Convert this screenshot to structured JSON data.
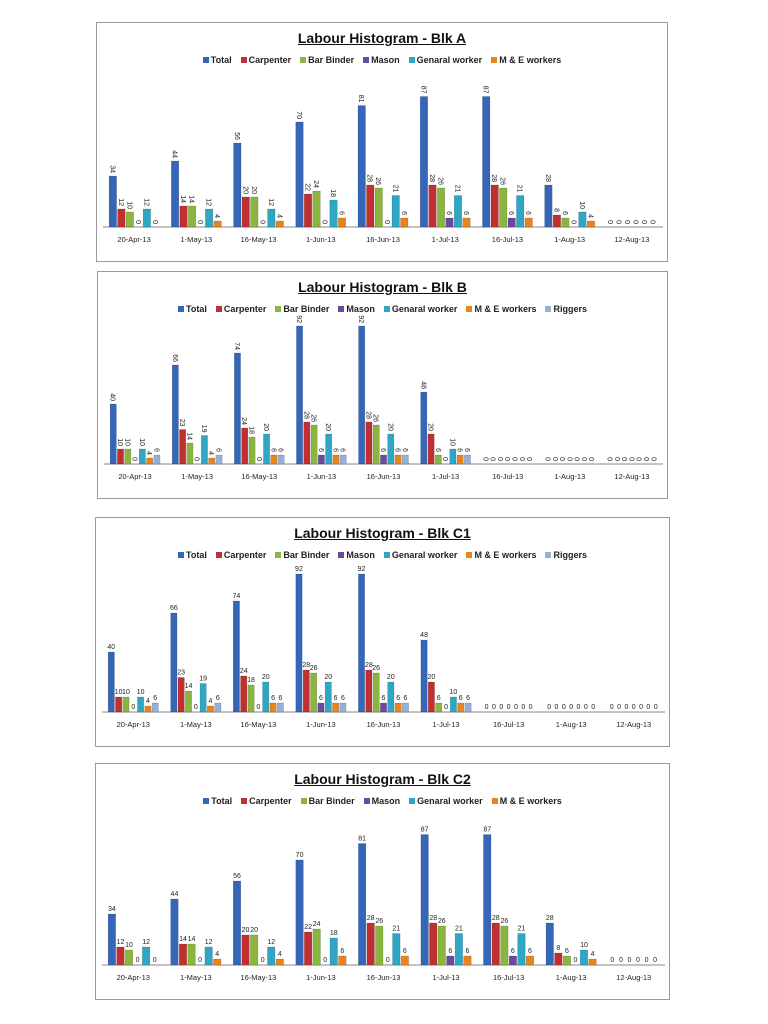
{
  "colors": {
    "Total": "#3566b8",
    "Carpenter": "#c03030",
    "Bar Binder": "#8ab53e",
    "Mason": "#6b4a9e",
    "Genaral worker": "#2fa6c4",
    "M & E workers": "#e8841f",
    "Riggers": "#94afd8"
  },
  "chart_data": [
    {
      "type": "bar",
      "title": "Labour Histogram - Blk A",
      "xlabel": "",
      "ylabel": "",
      "ylim": [
        0,
        100
      ],
      "grid": false,
      "legend": "top",
      "categories": [
        "20-Apr-13",
        "1-May-13",
        "16-May-13",
        "1-Jun-13",
        "16-Jun-13",
        "1-Jul-13",
        "16-Jul-13",
        "1-Aug-13",
        "12-Aug-13"
      ],
      "series": [
        {
          "name": "Total",
          "values": [
            34,
            44,
            56,
            70,
            81,
            87,
            87,
            28,
            0
          ]
        },
        {
          "name": "Carpenter",
          "values": [
            12,
            14,
            20,
            22,
            28,
            28,
            28,
            8,
            0
          ]
        },
        {
          "name": "Bar Binder",
          "values": [
            10,
            14,
            20,
            24,
            26,
            26,
            26,
            6,
            0
          ]
        },
        {
          "name": "Mason",
          "values": [
            0,
            0,
            0,
            0,
            0,
            6,
            6,
            0,
            0
          ]
        },
        {
          "name": "Genaral worker",
          "values": [
            12,
            12,
            12,
            18,
            21,
            21,
            21,
            10,
            0
          ]
        },
        {
          "name": "M & E workers",
          "values": [
            0,
            4,
            4,
            6,
            6,
            6,
            6,
            4,
            0
          ]
        }
      ]
    },
    {
      "type": "bar",
      "title": "Labour Histogram - Blk B",
      "xlabel": "",
      "ylabel": "",
      "ylim": [
        0,
        100
      ],
      "grid": false,
      "legend": "top",
      "categories": [
        "20-Apr-13",
        "1-May-13",
        "16-May-13",
        "1-Jun-13",
        "16-Jun-13",
        "1-Jul-13",
        "16-Jul-13",
        "1-Aug-13",
        "12-Aug-13"
      ],
      "series": [
        {
          "name": "Total",
          "values": [
            40,
            66,
            74,
            92,
            92,
            48,
            0,
            0,
            0
          ]
        },
        {
          "name": "Carpenter",
          "values": [
            10,
            23,
            24,
            28,
            28,
            20,
            0,
            0,
            0
          ]
        },
        {
          "name": "Bar Binder",
          "values": [
            10,
            14,
            18,
            26,
            26,
            6,
            0,
            0,
            0
          ]
        },
        {
          "name": "Mason",
          "values": [
            0,
            0,
            0,
            6,
            6,
            0,
            0,
            0,
            0
          ]
        },
        {
          "name": "Genaral worker",
          "values": [
            10,
            19,
            20,
            20,
            20,
            10,
            0,
            0,
            0
          ]
        },
        {
          "name": "M & E workers",
          "values": [
            4,
            4,
            6,
            6,
            6,
            6,
            0,
            0,
            0
          ]
        },
        {
          "name": "Riggers",
          "values": [
            6,
            6,
            6,
            6,
            6,
            6,
            0,
            0,
            0
          ]
        }
      ]
    },
    {
      "type": "bar",
      "title": "Labour Histogram - Blk C1",
      "xlabel": "",
      "ylabel": "",
      "ylim": [
        0,
        100
      ],
      "grid": false,
      "legend": "top",
      "categories": [
        "20-Apr-13",
        "1-May-13",
        "16-May-13",
        "1-Jun-13",
        "16-Jun-13",
        "1-Jul-13",
        "16-Jul-13",
        "1-Aug-13",
        "12-Aug-13"
      ],
      "series": [
        {
          "name": "Total",
          "values": [
            40,
            66,
            74,
            92,
            92,
            48,
            0,
            0,
            0
          ]
        },
        {
          "name": "Carpenter",
          "values": [
            10,
            23,
            24,
            28,
            28,
            20,
            0,
            0,
            0
          ]
        },
        {
          "name": "Bar Binder",
          "values": [
            10,
            14,
            18,
            26,
            26,
            6,
            0,
            0,
            0
          ]
        },
        {
          "name": "Mason",
          "values": [
            0,
            0,
            0,
            6,
            6,
            0,
            0,
            0,
            0
          ]
        },
        {
          "name": "Genaral worker",
          "values": [
            10,
            19,
            20,
            20,
            20,
            10,
            0,
            0,
            0
          ]
        },
        {
          "name": "M & E workers",
          "values": [
            4,
            4,
            6,
            6,
            6,
            6,
            0,
            0,
            0
          ]
        },
        {
          "name": "Riggers",
          "values": [
            6,
            6,
            6,
            6,
            6,
            6,
            0,
            0,
            0
          ]
        }
      ]
    },
    {
      "type": "bar",
      "title": "Labour Histogram - Blk C2",
      "xlabel": "",
      "ylabel": "",
      "ylim": [
        0,
        100
      ],
      "grid": false,
      "legend": "top",
      "categories": [
        "20-Apr-13",
        "1-May-13",
        "16-May-13",
        "1-Jun-13",
        "16-Jun-13",
        "1-Jul-13",
        "16-Jul-13",
        "1-Aug-13",
        "12-Aug-13"
      ],
      "series": [
        {
          "name": "Total",
          "values": [
            34,
            44,
            56,
            70,
            81,
            87,
            87,
            28,
            0
          ]
        },
        {
          "name": "Carpenter",
          "values": [
            12,
            14,
            20,
            22,
            28,
            28,
            28,
            8,
            0
          ]
        },
        {
          "name": "Bar Binder",
          "values": [
            10,
            14,
            20,
            24,
            26,
            26,
            26,
            6,
            0
          ]
        },
        {
          "name": "Mason",
          "values": [
            0,
            0,
            0,
            0,
            0,
            6,
            6,
            0,
            0
          ]
        },
        {
          "name": "Genaral worker",
          "values": [
            12,
            12,
            12,
            18,
            21,
            21,
            21,
            10,
            0
          ]
        },
        {
          "name": "M & E workers",
          "values": [
            0,
            4,
            4,
            6,
            6,
            6,
            6,
            4,
            0
          ]
        }
      ]
    }
  ]
}
